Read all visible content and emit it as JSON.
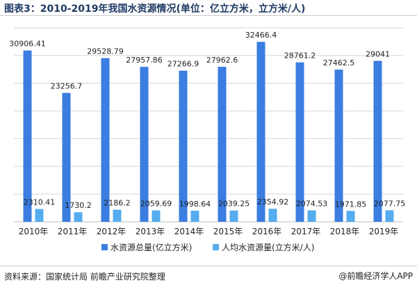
{
  "header": {
    "title": "图表3：2010-2019年我国水资源情况(单位：亿立方米，立方米/人)"
  },
  "footer": {
    "source": "资料来源：国家统计局 前瞻产业研究院整理",
    "logo_text": "@前瞻经济学人APP"
  },
  "colors": {
    "series_total": "#3b7de0",
    "series_percap": "#55acee",
    "grid": "#d6d6d6",
    "label": "#222222"
  },
  "chart_data": {
    "type": "bar",
    "title": "图表3：2010-2019年我国水资源情况(单位：亿立方米，立方米/人)",
    "categories": [
      "2010年",
      "2011年",
      "2012年",
      "2013年",
      "2014年",
      "2015年",
      "2016年",
      "2017年",
      "2018年",
      "2019年"
    ],
    "series": [
      {
        "name": "水资源总量(亿立方米)",
        "values": [
          30906.41,
          23256.7,
          29528.79,
          27957.86,
          27266.9,
          27962.6,
          32466.4,
          28761.2,
          27462.5,
          29041
        ],
        "labels": [
          "30906.41",
          "23256.7",
          "29528.79",
          "27957.86",
          "27266.9",
          "27962.6",
          "32466.4",
          "28761.2",
          "27462.5",
          "29041"
        ]
      },
      {
        "name": "人均水资源量(立方米/人)",
        "values": [
          2310.41,
          1730.2,
          2186.2,
          2059.69,
          1998.64,
          2039.25,
          2354.92,
          2074.53,
          1971.85,
          2077.75
        ],
        "labels": [
          "2310.41",
          "1730.2",
          "2186.2",
          "2059.69",
          "1998.64",
          "2039.25",
          "2354.92",
          "2074.53",
          "1971.85",
          "2077.75"
        ]
      }
    ],
    "ylim": [
      0,
      35000
    ],
    "grid": true,
    "legend_position": "bottom",
    "xlabel": "",
    "ylabel": ""
  }
}
